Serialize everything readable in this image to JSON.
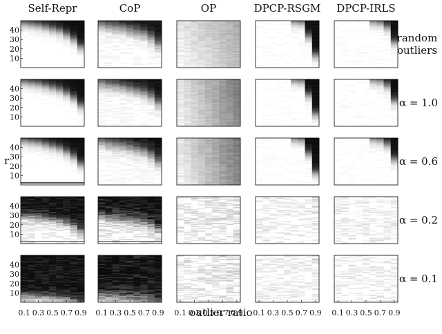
{
  "chart_data": {
    "type": "heatmap",
    "title": "",
    "method_titles": [
      "Self-Repr",
      "CoP",
      "OP",
      "DPCP-RSGM",
      "DPCP-IRLS"
    ],
    "row_labels": [
      {
        "line1": "random",
        "line2": "outliers"
      },
      {
        "line1": "α = 1.0",
        "line2": ""
      },
      {
        "line1": "α = 0.6",
        "line2": ""
      },
      {
        "line1": "α = 0.2",
        "line2": ""
      },
      {
        "line1": "α = 0.1",
        "line2": ""
      }
    ],
    "xlabel": "outlier ratio",
    "ylabel": "r",
    "x_ticks": [
      "0.1",
      "0.3",
      "0.5",
      "0.7",
      "0.9"
    ],
    "y_ticks": [
      "10",
      "20",
      "30",
      "40"
    ],
    "x_range": [
      0.1,
      0.9
    ],
    "y_range": [
      1,
      50
    ],
    "colormap": {
      "low": "#ffffff",
      "high": "#0d0d0d",
      "meaning": "darker = larger error (failure)"
    },
    "cells": {
      "Self-Repr": {
        "boundary_r": [
          48,
          47,
          46,
          44,
          42,
          40,
          36,
          31,
          23
        ],
        "sharpness": 3.0,
        "noise": 0.02
      },
      "CoP": {
        "boundary_r": [
          47,
          45,
          44,
          43,
          41,
          39,
          37,
          33,
          26
        ],
        "sharpness": 4.0,
        "noise": 0.06
      },
      "OP": {
        "boundary_r": [
          60,
          60,
          60,
          60,
          60,
          60,
          60,
          60,
          60
        ],
        "sharpness": 10.0,
        "noise": 0.05,
        "base_gray": [
          0.03,
          0.05,
          0.07,
          0.09,
          0.11,
          0.13,
          0.16,
          0.18,
          0.2
        ]
      },
      "DPCP-RSGM": {
        "boundary_r": [
          99,
          99,
          99,
          99,
          99,
          50,
          49,
          34,
          14
        ],
        "sharpness": 3.0,
        "noise": 0.03
      },
      "DPCP-IRLS": {
        "boundary_r": [
          99,
          99,
          99,
          99,
          99,
          50,
          49,
          44,
          28
        ],
        "sharpness": 3.0,
        "noise": 0.03
      }
    }
  }
}
